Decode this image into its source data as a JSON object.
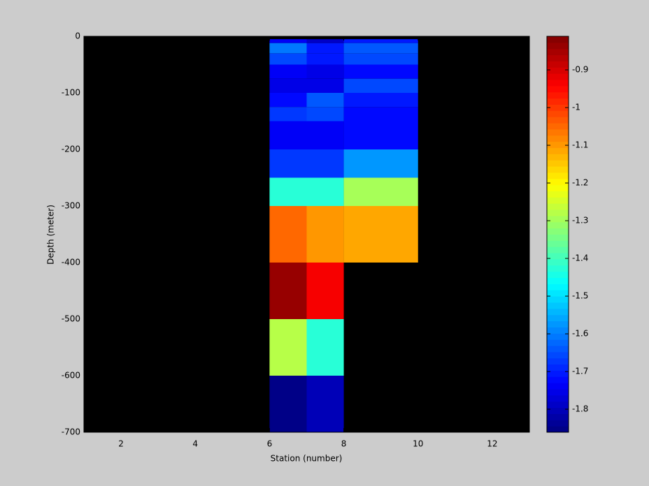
{
  "chart_data": {
    "type": "heatmap",
    "xlabel": "Station (number)",
    "ylabel": "Depth (meter)",
    "x_edges": [
      6,
      7,
      8,
      10
    ],
    "y_edges": [
      -5,
      -12,
      -30,
      -50,
      -75,
      -100,
      -125,
      -150,
      -200,
      -250,
      -300,
      -400,
      -500,
      -600,
      -700
    ],
    "values": [
      [
        -1.73,
        -1.78,
        -1.7
      ],
      [
        -1.6,
        -1.7,
        -1.64
      ],
      [
        -1.66,
        -1.7,
        -1.66
      ],
      [
        -1.73,
        -1.76,
        -1.72
      ],
      [
        -1.76,
        -1.76,
        -1.66
      ],
      [
        -1.72,
        -1.64,
        -1.7
      ],
      [
        -1.68,
        -1.66,
        -1.72
      ],
      [
        -1.74,
        -1.74,
        -1.72
      ],
      [
        -1.68,
        -1.67,
        -1.57
      ],
      [
        -1.42,
        -1.42,
        -1.3
      ],
      [
        -1.05,
        -1.1,
        -1.12
      ],
      [
        -0.84,
        -0.93,
        null
      ],
      [
        -1.28,
        -1.42,
        null
      ],
      [
        -1.86,
        -1.8,
        null
      ]
    ],
    "colormap": "jet",
    "background_color": "#000000",
    "xlim": [
      1,
      13
    ],
    "xticks": [
      2,
      4,
      6,
      8,
      10,
      12
    ],
    "ylim": [
      -700,
      0
    ],
    "yticks": [
      0,
      -100,
      -200,
      -300,
      -400,
      -500,
      -600,
      -700
    ],
    "clim": [
      -1.861,
      -0.811
    ],
    "cticks": [
      -0.9,
      -1,
      -1.1,
      -1.2,
      -1.3,
      -1.4,
      -1.5,
      -1.6,
      -1.7,
      -1.8
    ]
  }
}
